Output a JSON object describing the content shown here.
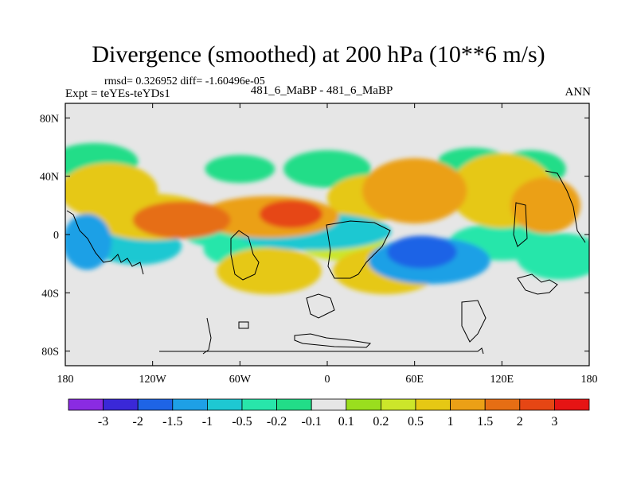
{
  "chart_data": {
    "type": "heatmap",
    "title": "Divergence (smoothed) at 200 hPa (10**6 m/s)",
    "stats": "rmsd= 0.326952 diff= -1.60496e-05",
    "experiment": "Expt = teYEs-teYDs1",
    "case_label": "481_6_MaBP - 481_6_MaBP",
    "season": "ANN",
    "xlim": [
      -180,
      180
    ],
    "ylim": [
      -90,
      90
    ],
    "x_ticks": [
      {
        "value": -180,
        "label": "180"
      },
      {
        "value": -120,
        "label": "120W"
      },
      {
        "value": -60,
        "label": "60W"
      },
      {
        "value": 0,
        "label": "0"
      },
      {
        "value": 60,
        "label": "60E"
      },
      {
        "value": 120,
        "label": "120E"
      },
      {
        "value": 180,
        "label": "180"
      }
    ],
    "y_ticks": [
      {
        "value": 80,
        "label": "80N"
      },
      {
        "value": 40,
        "label": "40N"
      },
      {
        "value": 0,
        "label": "0"
      },
      {
        "value": -40,
        "label": "40S"
      },
      {
        "value": -80,
        "label": "80S"
      }
    ],
    "colorbar": {
      "labels": [
        "-3",
        "-2",
        "-1.5",
        "-1",
        "-0.5",
        "-0.2",
        "-0.1",
        "0.1",
        "0.2",
        "0.5",
        "1",
        "1.5",
        "2",
        "3"
      ],
      "colors": [
        "#8a2be2",
        "#3a28d8",
        "#1e64e6",
        "#1ea0e6",
        "#1ec8d2",
        "#28e6aa",
        "#22dd88",
        "#e6e6e6",
        "#9ade1e",
        "#cce62a",
        "#e6c814",
        "#eba016",
        "#e66e14",
        "#e64614",
        "#e61414"
      ]
    },
    "field_blobs": [
      {
        "lon": -150,
        "lat": 30,
        "rx": 28,
        "ry": 12,
        "value": 0.5
      },
      {
        "lon": -140,
        "lat": 5,
        "rx": 30,
        "ry": 10,
        "value": 0.4
      },
      {
        "lon": -120,
        "lat": 12,
        "rx": 35,
        "ry": 10,
        "value": 0.8
      },
      {
        "lon": -100,
        "lat": 10,
        "rx": 28,
        "ry": 8,
        "value": 1.6
      },
      {
        "lon": -40,
        "lat": 12,
        "rx": 40,
        "ry": 9,
        "value": 1.2
      },
      {
        "lon": -25,
        "lat": 14,
        "rx": 18,
        "ry": 6,
        "value": 2.0
      },
      {
        "lon": 30,
        "lat": 25,
        "rx": 25,
        "ry": 10,
        "value": 0.5
      },
      {
        "lon": 60,
        "lat": 30,
        "rx": 30,
        "ry": 14,
        "value": 1.0
      },
      {
        "lon": 120,
        "lat": 30,
        "rx": 30,
        "ry": 16,
        "value": 0.7
      },
      {
        "lon": 150,
        "lat": 20,
        "rx": 20,
        "ry": 12,
        "value": 1.0
      },
      {
        "lon": -40,
        "lat": -25,
        "rx": 30,
        "ry": 10,
        "value": 0.5
      },
      {
        "lon": 40,
        "lat": -25,
        "rx": 30,
        "ry": 10,
        "value": 0.5
      },
      {
        "lon": 10,
        "lat": -5,
        "rx": 25,
        "ry": 8,
        "value": 0.3
      },
      {
        "lon": -165,
        "lat": -5,
        "rx": 14,
        "ry": 12,
        "value": -1.2
      },
      {
        "lon": -130,
        "lat": -8,
        "rx": 25,
        "ry": 8,
        "value": -0.6
      },
      {
        "lon": -70,
        "lat": 2,
        "rx": 25,
        "ry": 7,
        "value": -0.4
      },
      {
        "lon": -10,
        "lat": 2,
        "rx": 45,
        "ry": 8,
        "value": -1.0
      },
      {
        "lon": -55,
        "lat": -10,
        "rx": 25,
        "ry": 8,
        "value": -0.3
      },
      {
        "lon": 70,
        "lat": -18,
        "rx": 35,
        "ry": 10,
        "value": -1.4
      },
      {
        "lon": 65,
        "lat": -12,
        "rx": 20,
        "ry": 7,
        "value": -1.6
      },
      {
        "lon": 120,
        "lat": -5,
        "rx": 30,
        "ry": 8,
        "value": -0.3
      },
      {
        "lon": 160,
        "lat": -15,
        "rx": 25,
        "ry": 10,
        "value": -0.5
      },
      {
        "lon": -160,
        "lat": 50,
        "rx": 25,
        "ry": 8,
        "value": -0.15
      },
      {
        "lon": -60,
        "lat": 45,
        "rx": 20,
        "ry": 6,
        "value": -0.15
      },
      {
        "lon": 0,
        "lat": 45,
        "rx": 25,
        "ry": 8,
        "value": -0.15
      },
      {
        "lon": 100,
        "lat": 50,
        "rx": 20,
        "ry": 6,
        "value": -0.15
      },
      {
        "lon": 140,
        "lat": 45,
        "rx": 20,
        "ry": 8,
        "value": -0.15
      }
    ]
  }
}
